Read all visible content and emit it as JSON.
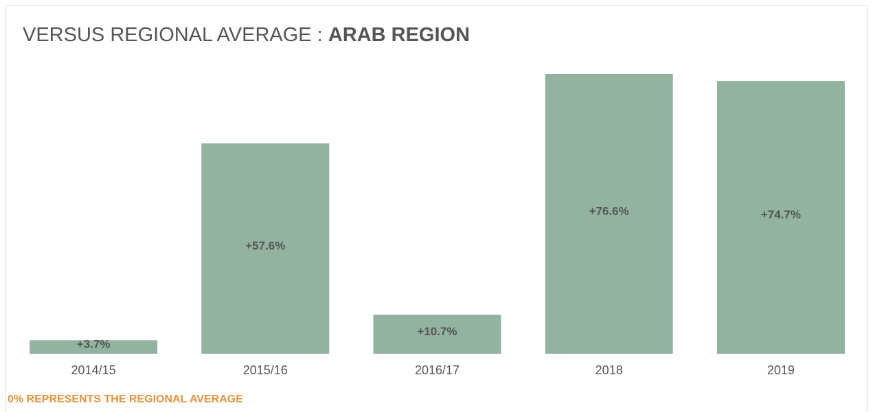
{
  "chart_data": {
    "type": "bar",
    "title": "VERSUS REGIONAL AVERAGE :",
    "title_emphasis": "ARAB REGION",
    "categories": [
      "2014/15",
      "2015/16",
      "2016/17",
      "2018",
      "2019"
    ],
    "values": [
      3.7,
      57.6,
      10.7,
      76.6,
      74.7
    ],
    "value_labels": [
      "+3.7%",
      "+57.6%",
      "+10.7%",
      "+76.6%",
      "+74.7%"
    ],
    "color": "#92b39f",
    "footnote": "0% REPRESENTS THE REGIONAL AVERAGE"
  }
}
